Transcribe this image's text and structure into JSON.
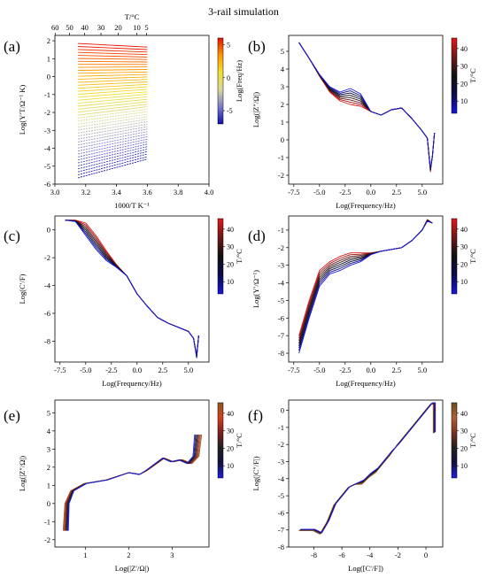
{
  "figure_title": "3-rail simulation",
  "chart_data": [
    {
      "id": "a",
      "panel_label": "(a)",
      "type": "line",
      "xlabel": "1000/T K⁻¹",
      "ylabel": "Log(Y′T/Ω⁻¹ K)",
      "top_xlabel": "T/°C",
      "xlim": [
        3.0,
        4.0
      ],
      "ylim": [
        -6,
        2.3
      ],
      "xticks": [
        "3.0",
        "3.2",
        "3.4",
        "3.6",
        "3.8",
        "4.0"
      ],
      "xtick_values": [
        3.0,
        3.2,
        3.4,
        3.6,
        3.8,
        4.0
      ],
      "yticks": [
        "2",
        "1",
        "0",
        "-1",
        "-2",
        "-3",
        "-4",
        "-5",
        "-6"
      ],
      "ytick_values": [
        2,
        1,
        0,
        -1,
        -2,
        -3,
        -4,
        -5,
        -6
      ],
      "top_ticks": [
        "60",
        "50",
        "40",
        "30",
        "20",
        "10",
        "5"
      ],
      "top_tick_values": [
        60,
        50,
        40,
        30,
        20,
        10,
        5
      ],
      "colorbar": {
        "label": "Log(Freq/Hz)",
        "ticks": [
          "5",
          "0",
          "-5"
        ],
        "tick_values": [
          5,
          0,
          -5
        ],
        "range": [
          -7,
          6
        ],
        "cmap": "bwyr"
      },
      "curves": {
        "x_range": [
          3.15,
          3.6
        ],
        "y_start_range": [
          1.85,
          -5.65
        ],
        "y_end_range": [
          1.65,
          -4.6
        ],
        "count": 46
      }
    },
    {
      "id": "b",
      "panel_label": "(b)",
      "type": "line",
      "xlabel": "Log(Frequency/Hz)",
      "ylabel": "Log(|Z″/Ω|)",
      "xlim": [
        -8,
        7
      ],
      "ylim": [
        -2.5,
        5.9
      ],
      "xticks": [
        "-7.5",
        "-5.0",
        "-2.5",
        "0.0",
        "2.5",
        "5.0"
      ],
      "xtick_values": [
        -7.5,
        -5,
        -2.5,
        0,
        2.5,
        5
      ],
      "yticks": [
        "5",
        "4",
        "3",
        "2",
        "1",
        "0",
        "-1",
        "-2"
      ],
      "ytick_values": [
        5,
        4,
        3,
        2,
        1,
        0,
        -1,
        -2
      ],
      "colorbar": {
        "label": "T/°C",
        "ticks": [
          "40",
          "30",
          "20",
          "10"
        ],
        "tick_values": [
          40,
          30,
          20,
          10
        ],
        "range": [
          3,
          46
        ],
        "cmap": "bkr"
      },
      "curves": {
        "count": 8,
        "x": [
          -7,
          -6,
          -5,
          -4,
          -3,
          -2,
          -1,
          0,
          1,
          2,
          3,
          4,
          5,
          5.5,
          5.8,
          6.0,
          6.2
        ],
        "y_cold": [
          5.5,
          4.6,
          3.7,
          3.0,
          2.7,
          2.9,
          2.6,
          1.6,
          1.4,
          1.7,
          1.8,
          1.2,
          0.5,
          0.1,
          -1.6,
          -0.9,
          0.4
        ],
        "y_hot": [
          5.5,
          4.6,
          3.6,
          2.7,
          2.2,
          2.0,
          1.9,
          1.6,
          1.4,
          1.7,
          1.8,
          1.2,
          0.5,
          0.1,
          -1.8,
          -0.9,
          0.4
        ]
      }
    },
    {
      "id": "c",
      "panel_label": "(c)",
      "type": "line",
      "xlabel": "Log(Frequency/Hz)",
      "ylabel": "Log(C′/F)",
      "xlim": [
        -8,
        7
      ],
      "ylim": [
        -9.5,
        1.0
      ],
      "xticks": [
        "-7.5",
        "-5.0",
        "-2.5",
        "0.0",
        "2.5",
        "5.0"
      ],
      "xtick_values": [
        -7.5,
        -5,
        -2.5,
        0,
        2.5,
        5
      ],
      "yticks": [
        "0",
        "-2",
        "-4",
        "-6",
        "-8"
      ],
      "ytick_values": [
        0,
        -2,
        -4,
        -6,
        -8
      ],
      "colorbar": {
        "label": "T/°C",
        "ticks": [
          "40",
          "30",
          "20",
          "10"
        ],
        "tick_values": [
          40,
          30,
          20,
          10
        ],
        "range": [
          3,
          46
        ],
        "cmap": "bkr"
      },
      "curves": {
        "count": 8,
        "x": [
          -7,
          -6,
          -5,
          -4,
          -3,
          -2,
          -1,
          0,
          1,
          2,
          3,
          4,
          5,
          5.5,
          5.8,
          6.0
        ],
        "y_cold": [
          0.7,
          0.6,
          -0.4,
          -1.4,
          -2.2,
          -2.7,
          -3.3,
          -4.6,
          -5.5,
          -6.3,
          -6.7,
          -7.0,
          -7.3,
          -7.8,
          -9.2,
          -7.6
        ],
        "y_hot": [
          0.7,
          0.7,
          0.5,
          -0.4,
          -1.5,
          -2.5,
          -3.3,
          -4.6,
          -5.5,
          -6.3,
          -6.7,
          -7.0,
          -7.3,
          -7.8,
          -9.0,
          -7.6
        ]
      }
    },
    {
      "id": "d",
      "panel_label": "(d)",
      "type": "line",
      "xlabel": "Log(Frequency/Hz)",
      "ylabel": "Log(Y′/Ω⁻¹)",
      "xlim": [
        -8,
        7
      ],
      "ylim": [
        -8.5,
        -0.2
      ],
      "xticks": [
        "-7.5",
        "-5.0",
        "-2.5",
        "0.0",
        "2.5",
        "5.0"
      ],
      "xtick_values": [
        -7.5,
        -5,
        -2.5,
        0,
        2.5,
        5
      ],
      "yticks": [
        "-1",
        "-2",
        "-3",
        "-4",
        "-5",
        "-6",
        "-7",
        "-8"
      ],
      "ytick_values": [
        -1,
        -2,
        -3,
        -4,
        -5,
        -6,
        -7,
        -8
      ],
      "colorbar": {
        "label": "T/°C",
        "ticks": [
          "40",
          "30",
          "20",
          "10"
        ],
        "tick_values": [
          40,
          30,
          20,
          10
        ],
        "range": [
          3,
          46
        ],
        "cmap": "bkr"
      },
      "curves": {
        "count": 8,
        "x": [
          -7,
          -6,
          -5,
          -4,
          -3,
          -2,
          -1,
          0,
          1,
          2,
          3,
          4,
          5,
          5.5,
          6.0
        ],
        "y_cold": [
          -8.0,
          -6.0,
          -4.2,
          -3.5,
          -3.3,
          -3.0,
          -2.8,
          -2.4,
          -2.2,
          -2.1,
          -2.0,
          -1.6,
          -1.0,
          -0.5,
          -0.6
        ],
        "y_hot": [
          -7.0,
          -5.0,
          -3.3,
          -2.8,
          -2.5,
          -2.3,
          -2.3,
          -2.3,
          -2.2,
          -2.1,
          -2.0,
          -1.6,
          -1.0,
          -0.4,
          -0.6
        ]
      }
    },
    {
      "id": "e",
      "panel_label": "(e)",
      "type": "line",
      "xlabel": "Log(|Z′/Ω|)",
      "ylabel": "Log(|Z″/Ω|)",
      "xlim": [
        0.3,
        3.85
      ],
      "ylim": [
        -2.4,
        5.7
      ],
      "xticks": [
        "1",
        "2",
        "3"
      ],
      "xtick_values": [
        1,
        2,
        3
      ],
      "yticks": [
        "5",
        "4",
        "3",
        "2",
        "1",
        "0",
        "-1",
        "-2"
      ],
      "ytick_values": [
        5,
        4,
        3,
        2,
        1,
        0,
        -1,
        -2
      ],
      "colorbar": {
        "label": "T/°C",
        "ticks": [
          "40",
          "30",
          "20",
          "10"
        ],
        "tick_values": [
          40,
          30,
          20,
          10
        ],
        "range": [
          3,
          46
        ],
        "cmap": "bkrb"
      },
      "curves": {
        "count": 8,
        "x": [
          0.55,
          0.58,
          0.7,
          1.0,
          1.5,
          2.0,
          2.25,
          2.4,
          2.8,
          3.0,
          3.2,
          3.4,
          3.55,
          3.6
        ],
        "y": [
          -1.5,
          0.0,
          0.7,
          1.1,
          1.3,
          1.7,
          1.6,
          1.8,
          2.5,
          2.3,
          2.4,
          2.2,
          2.6,
          3.8
        ]
      }
    },
    {
      "id": "f",
      "panel_label": "(f)",
      "type": "line",
      "xlabel": "Log([C′/F])",
      "ylabel": "Log(|C″/F|)",
      "xlim": [
        -9.8,
        1.2
      ],
      "ylim": [
        -8.0,
        0.6
      ],
      "xticks": [
        "-8",
        "-6",
        "-4",
        "-2",
        "0"
      ],
      "xtick_values": [
        -8,
        -6,
        -4,
        -2,
        0
      ],
      "yticks": [
        "0",
        "-1",
        "-2",
        "-3",
        "-4",
        "-5",
        "-6",
        "-7",
        "-8"
      ],
      "ytick_values": [
        0,
        -1,
        -2,
        -3,
        -4,
        -5,
        -6,
        -7,
        -8
      ],
      "colorbar": {
        "label": "T/°C",
        "ticks": [
          "40",
          "30",
          "20",
          "10"
        ],
        "tick_values": [
          40,
          30,
          20,
          10
        ],
        "range": [
          3,
          46
        ],
        "cmap": "bkrbr"
      },
      "curves": {
        "count": 8,
        "x": [
          -9.0,
          -8.0,
          -7.5,
          -7.0,
          -6.5,
          -6.0,
          -5.5,
          -5.0,
          -4.5,
          -4.0,
          -3.5,
          -3.0,
          -2.5,
          -2.0,
          -1.5,
          -1.0,
          -0.5,
          0.0,
          0.4,
          0.6,
          0.6
        ],
        "y": [
          -7.0,
          -7.0,
          -7.2,
          -6.5,
          -5.5,
          -5.0,
          -4.5,
          -4.3,
          -4.2,
          -3.8,
          -3.5,
          -3.0,
          -2.5,
          -2.0,
          -1.5,
          -1.0,
          -0.5,
          0.0,
          0.4,
          0.4,
          -1.3
        ]
      }
    }
  ]
}
